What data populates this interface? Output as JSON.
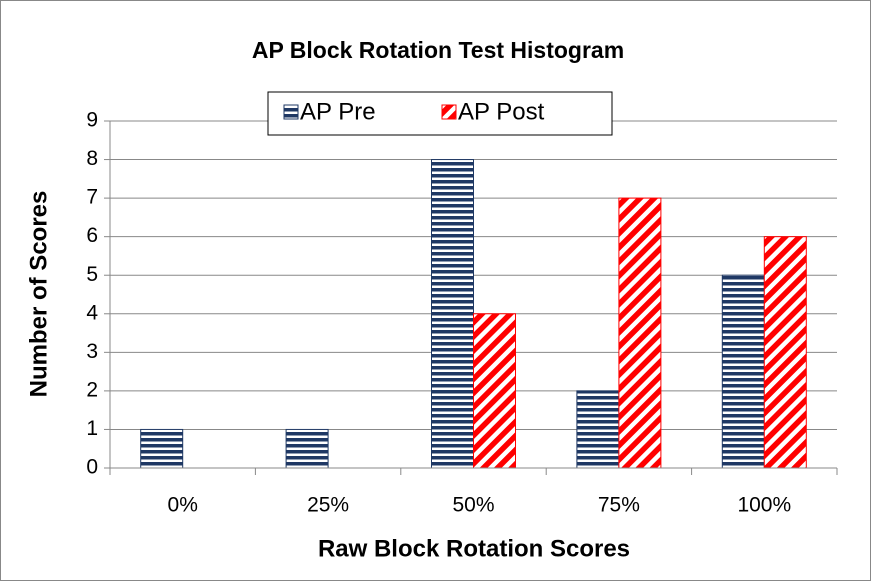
{
  "chart_data": {
    "type": "bar",
    "title": "AP Block Rotation Test Histogram",
    "xlabel": "Raw Block Rotation Scores",
    "ylabel": "Number of Scores",
    "categories": [
      "0%",
      "25%",
      "50%",
      "75%",
      "100%"
    ],
    "series": [
      {
        "name": "AP Pre",
        "color": "#1f3864",
        "values": [
          1,
          1,
          8,
          2,
          5
        ]
      },
      {
        "name": "AP Post",
        "color": "#ff0000",
        "values": [
          0,
          0,
          4,
          7,
          6
        ]
      }
    ],
    "ylim": [
      0,
      9
    ],
    "yticks": [
      0,
      1,
      2,
      3,
      4,
      5,
      6,
      7,
      8,
      9
    ],
    "grid": true
  }
}
